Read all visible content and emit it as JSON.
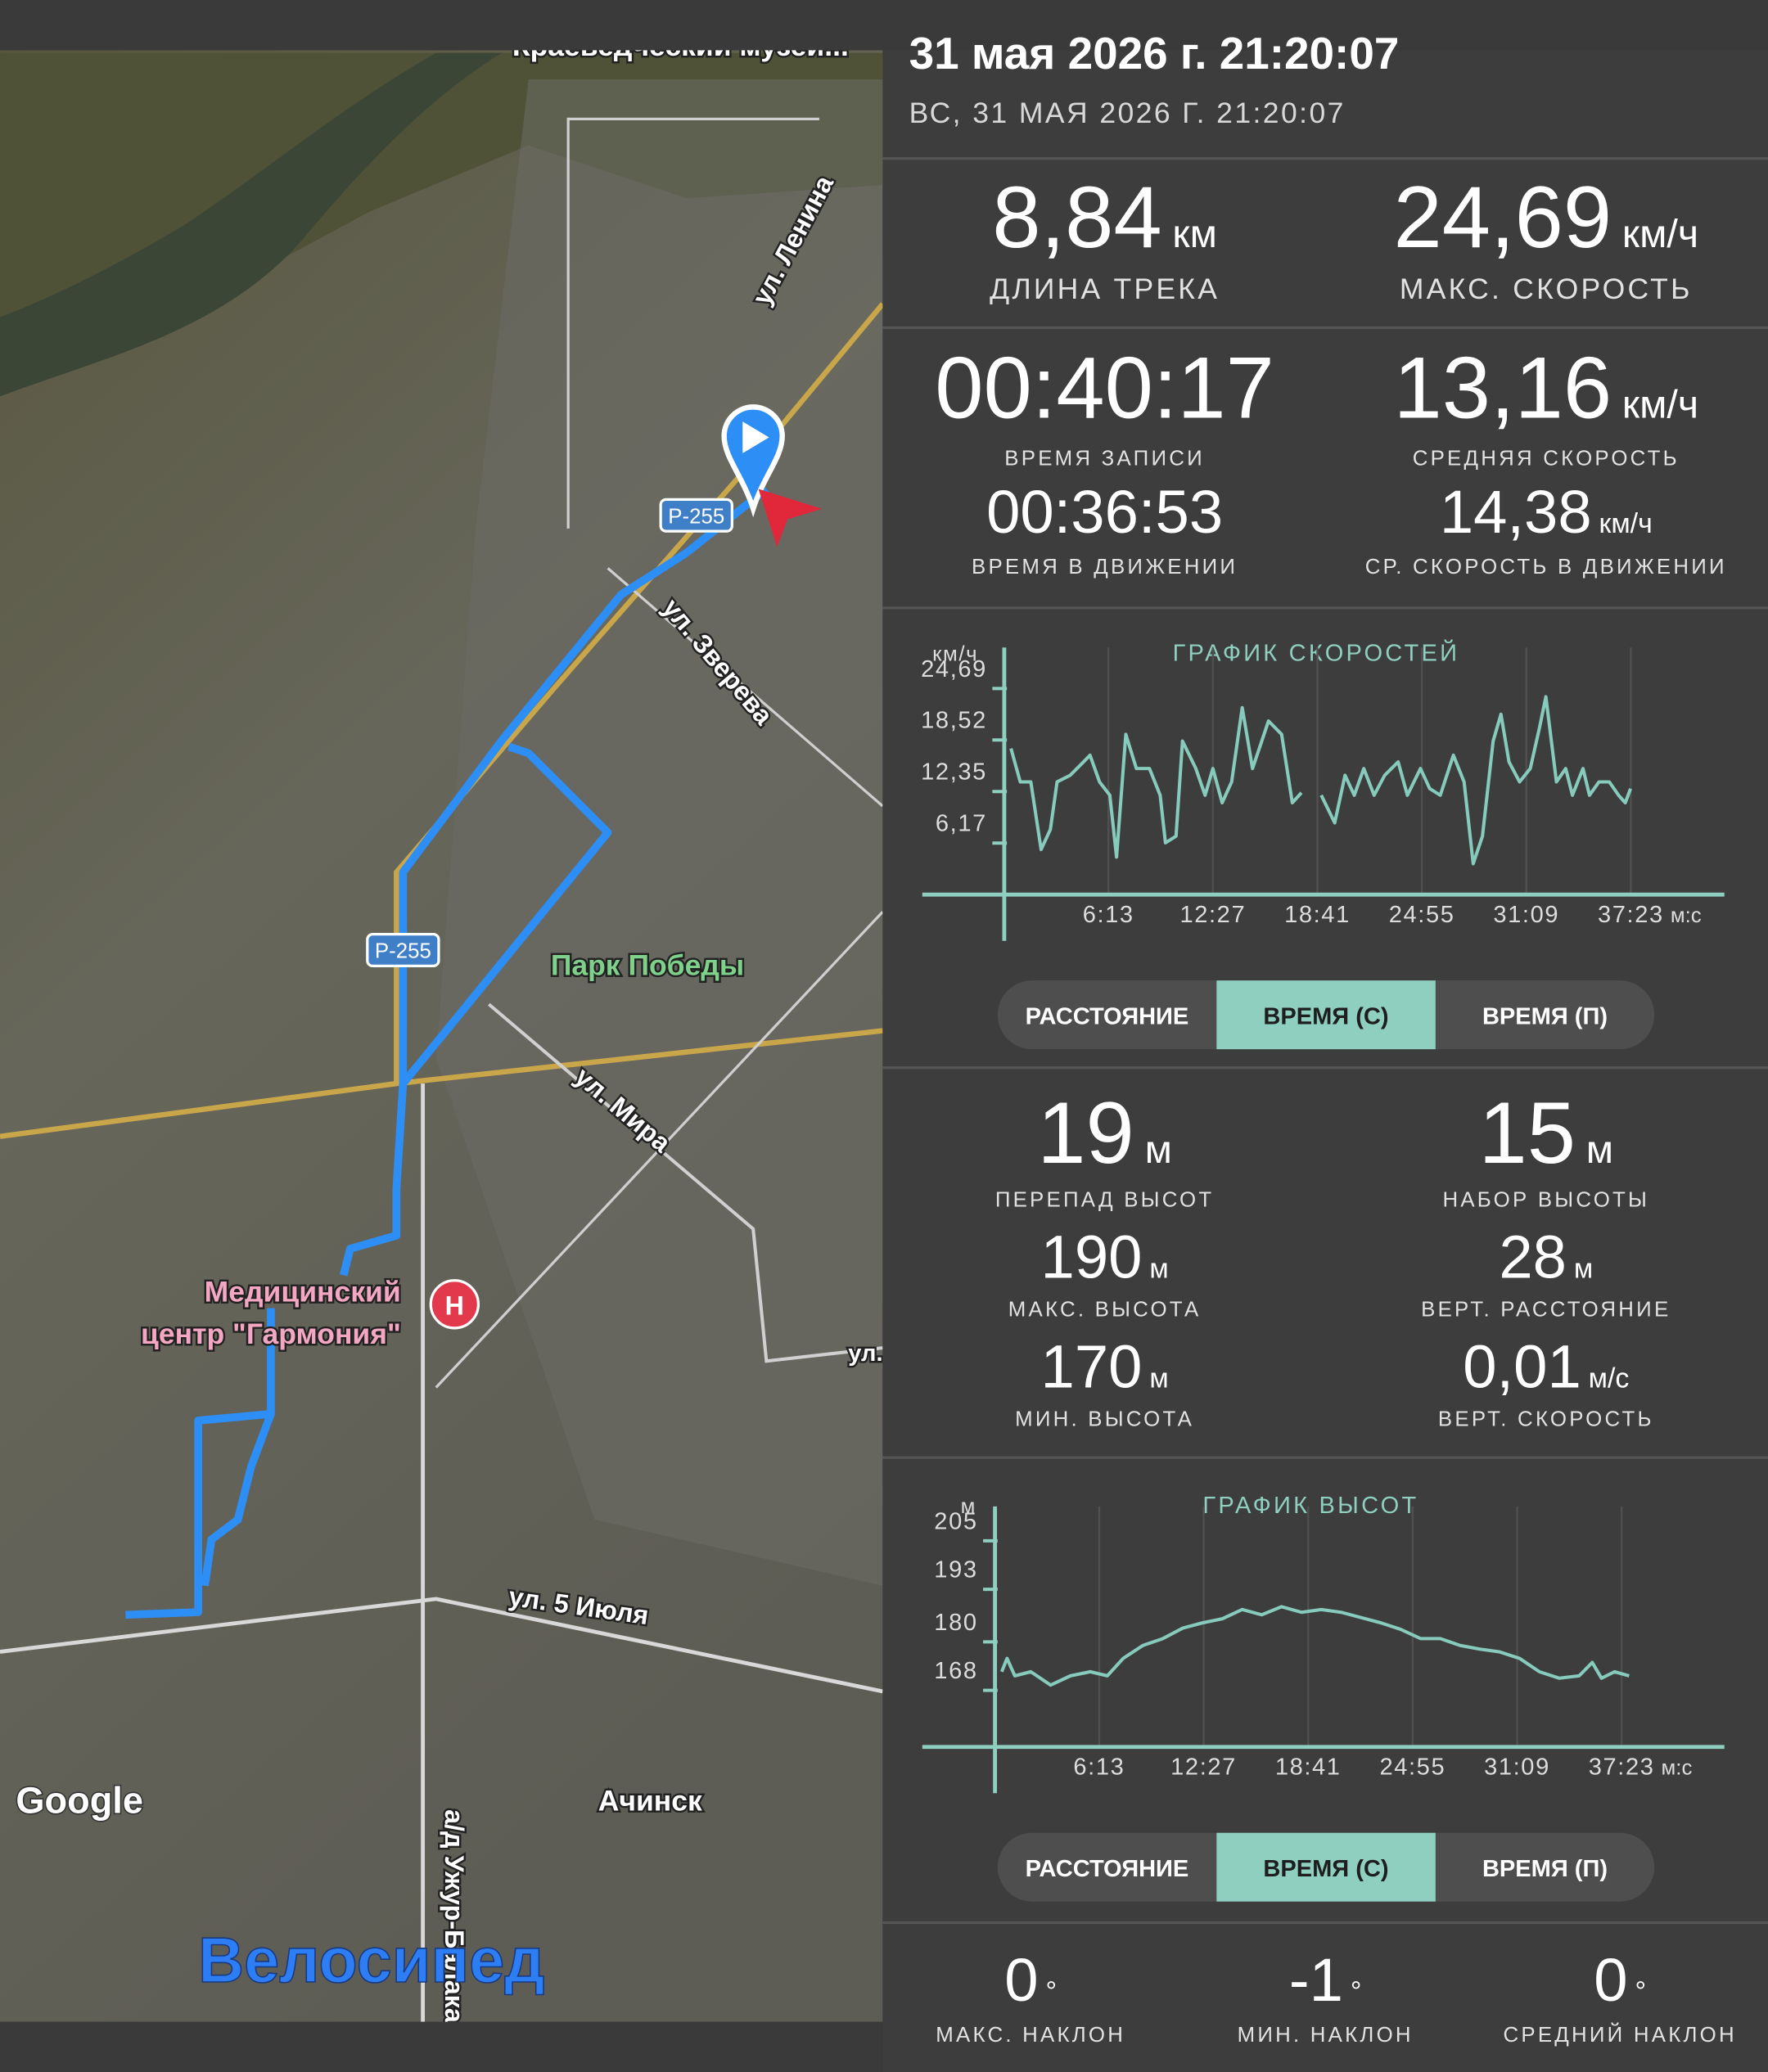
{
  "header": {
    "title": "31 мая 2026 г. 21:20:07",
    "subtitle": "ВС, 31 МАЯ 2026 Г. 21:20:07"
  },
  "map": {
    "labels": [
      "Краеведческий музей...",
      "ул. Ленина",
      "ул. Зверева",
      "Парк Победы",
      "ул. Мира",
      "ул.",
      "ул. 5 Июля",
      "Ачинск",
      "а/д Ужур-Балака",
      "Медицинский",
      "центр \"Гармония\""
    ],
    "road_signs": [
      "Р-255",
      "Р-255"
    ],
    "attribution": "Google",
    "mode": "Велосипед"
  },
  "track_stats": [
    {
      "value": "8,84",
      "unit": "км",
      "label": "ДЛИНА ТРЕКА"
    },
    {
      "value": "24,69",
      "unit": "км/ч",
      "label": "МАКС. СКОРОСТЬ"
    },
    {
      "value": "00:40:17",
      "label": "ВРЕМЯ ЗАПИСИ"
    },
    {
      "value": "13,16",
      "unit": "км/ч",
      "label": "СРЕДНЯЯ СКОРОСТЬ"
    },
    {
      "value": "00:36:53",
      "label": "ВРЕМЯ В ДВИЖЕНИИ"
    },
    {
      "value": "14,38",
      "unit": "км/ч",
      "label": "СР. СКОРОСТЬ В ДВИЖЕНИИ"
    }
  ],
  "elevation_stats": [
    {
      "value": "19",
      "unit": "м",
      "label": "ПЕРЕПАД ВЫСОТ"
    },
    {
      "value": "15",
      "unit": "м",
      "label": "НАБОР ВЫСОТЫ"
    },
    {
      "value": "190",
      "unit": "м",
      "label": "МАКС. ВЫСОТА"
    },
    {
      "value": "28",
      "unit": "м",
      "label": "ВЕРТ. РАССТОЯНИЕ"
    },
    {
      "value": "170",
      "unit": "м",
      "label": "МИН. ВЫСОТА"
    },
    {
      "value": "0,01",
      "unit": "м/с",
      "label": "ВЕРТ. СКОРОСТЬ"
    }
  ],
  "incline_stats": [
    {
      "value": "0",
      "unit": "°",
      "label": "МАКС. НАКЛОН"
    },
    {
      "value": "-1",
      "unit": "°",
      "label": "МИН. НАКЛОН"
    },
    {
      "value": "0",
      "unit": "°",
      "label": "СРЕДНИЙ НАКЛОН"
    }
  ],
  "tabs": [
    {
      "options": [
        "РАССТОЯНИЕ",
        "ВРЕМЯ (С)",
        "ВРЕМЯ (П)"
      ],
      "selected": 1
    },
    {
      "options": [
        "РАССТОЯНИЕ",
        "ВРЕМЯ (С)",
        "ВРЕМЯ (П)"
      ],
      "selected": 1
    }
  ],
  "chart_data": [
    {
      "type": "line",
      "title": "ГРАФИК СКОРОСТЕЙ",
      "ylabel": "км/ч",
      "xlabel": "м:с",
      "color": "#86cbbb",
      "grid": true,
      "xlim": [
        0,
        2578
      ],
      "ylim": [
        0,
        29.6
      ],
      "yticks": [
        {
          "value": 6.17,
          "label": "6,17"
        },
        {
          "value": 12.35,
          "label": "12,35"
        },
        {
          "value": 18.52,
          "label": "18,52"
        },
        {
          "value": 24.69,
          "label": "24,69"
        }
      ],
      "xticks": [
        {
          "value": 373,
          "label": "6:13"
        },
        {
          "value": 747,
          "label": "12:27"
        },
        {
          "value": 1121,
          "label": "18:41"
        },
        {
          "value": 1495,
          "label": "24:55"
        },
        {
          "value": 1869,
          "label": "31:09"
        },
        {
          "value": 2243,
          "label": "37:23"
        }
      ],
      "x": [
        24,
        57,
        95,
        132,
        165,
        189,
        236,
        284,
        307,
        341,
        378,
        402,
        435,
        473,
        520,
        558,
        577,
        615,
        638,
        686,
        719,
        747,
        780,
        814,
        852,
        889,
        922,
        946,
        993,
        1031,
        1064,
        1100,
        1135,
        1183,
        1220,
        1253,
        1287,
        1324,
        1362,
        1410,
        1443,
        1490,
        1523,
        1561,
        1608,
        1646,
        1679,
        1712,
        1750,
        1778,
        1807,
        1845,
        1883,
        1916,
        1939,
        1977,
        2010,
        2034,
        2072,
        2095,
        2129,
        2166,
        2199,
        2223,
        2242
      ],
      "values": [
        17.5,
        13.5,
        13.5,
        5.4,
        7.8,
        13.5,
        14.3,
        15.9,
        16.7,
        13.5,
        11.9,
        4.5,
        19.2,
        15.1,
        15.1,
        11.9,
        6.2,
        7.0,
        18.4,
        15.1,
        11.9,
        15.1,
        11.0,
        13.5,
        22.4,
        15.1,
        18.4,
        20.8,
        19.2,
        11.0,
        12.2,
        null,
        11.9,
        8.6,
        14.3,
        11.9,
        15.1,
        11.9,
        14.3,
        15.9,
        11.9,
        15.1,
        12.7,
        11.9,
        16.7,
        13.5,
        3.7,
        7.0,
        18.4,
        21.6,
        15.9,
        13.5,
        15.1,
        20.0,
        23.7,
        13.5,
        15.1,
        11.9,
        15.1,
        11.9,
        13.5,
        13.5,
        11.9,
        11.0,
        12.7
      ]
    },
    {
      "type": "line",
      "title": "ГРАФИК ВЫСОТ",
      "ylabel": "м",
      "xlabel": "м:с",
      "color": "#86cbbb",
      "grid": true,
      "xlim": [
        0,
        2611
      ],
      "ylim": [
        154,
        213.5
      ],
      "yticks": [
        168,
        180,
        193,
        205
      ],
      "xticks": [
        {
          "value": 373,
          "label": "6:13"
        },
        {
          "value": 747,
          "label": "12:27"
        },
        {
          "value": 1121,
          "label": "18:41"
        },
        {
          "value": 1495,
          "label": "24:55"
        },
        {
          "value": 1869,
          "label": "31:09"
        },
        {
          "value": 2243,
          "label": "37:23"
        }
      ],
      "x": [
        24,
        43,
        71,
        128,
        199,
        270,
        341,
        402,
        459,
        530,
        601,
        672,
        743,
        814,
        885,
        955,
        1026,
        1097,
        1168,
        1239,
        1310,
        1381,
        1452,
        1523,
        1594,
        1665,
        1736,
        1807,
        1878,
        1949,
        2020,
        2091,
        2138,
        2171,
        2218,
        2270
      ],
      "values": [
        172.6,
        175.9,
        171.6,
        172.6,
        169.3,
        171.6,
        172.6,
        171.6,
        175.9,
        179.1,
        180.8,
        183.4,
        184.7,
        185.7,
        188.0,
        186.7,
        188.7,
        187.3,
        188.0,
        187.3,
        186.0,
        184.7,
        183.1,
        180.8,
        180.8,
        179.1,
        178.2,
        177.5,
        175.9,
        172.6,
        171.0,
        171.6,
        174.9,
        171.0,
        172.6,
        171.6
      ]
    }
  ]
}
